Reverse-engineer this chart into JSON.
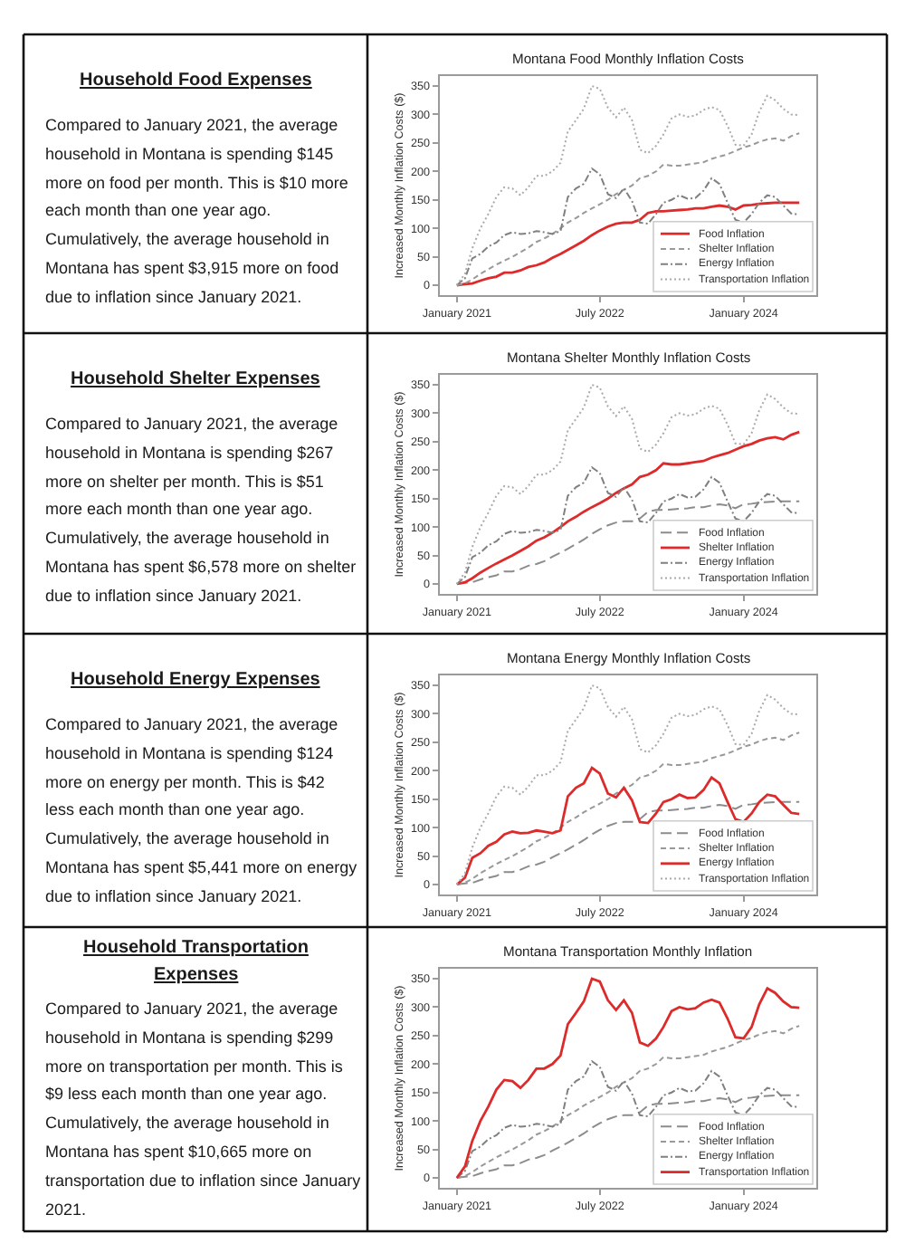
{
  "chart_data": [
    {
      "type": "other",
      "title": "Household Food Expenses",
      "annotations": [
        "Compared to January 2021, the average\nhousehold in Montana is spending $145\nmore on food per month. This is $10 more\neach month than one year ago.\nCumulatively, the average household in\nMontana has spent $3,915 more on food\ndue to inflation since January 2021."
      ]
    },
    {
      "type": "line",
      "title": "Montana Food Monthly Inflation Costs",
      "ylabel": "Increased Monthly Inflation Costs ($)",
      "legend": "bottom right",
      "x": [
        "2021-01",
        "2021-02",
        "2021-03",
        "2021-04",
        "2021-05",
        "2021-06",
        "2021-07",
        "2021-08",
        "2021-09",
        "2021-10",
        "2021-11",
        "2021-12",
        "2022-01",
        "2022-02",
        "2022-03",
        "2022-04",
        "2022-05",
        "2022-06",
        "2022-07",
        "2022-08",
        "2022-09",
        "2022-10",
        "2022-11",
        "2022-12",
        "2023-01",
        "2023-02",
        "2023-03",
        "2023-04",
        "2023-05",
        "2023-06",
        "2023-07",
        "2023-08",
        "2023-09",
        "2023-10",
        "2023-11",
        "2023-12",
        "2024-01",
        "2024-02",
        "2024-03",
        "2024-04",
        "2024-05",
        "2024-06",
        "2024-07",
        "2024-08"
      ],
      "xlim": [
        "2020-10-28",
        "2024-10-05"
      ],
      "xticks": [
        {
          "value": "2021-01",
          "label": "January 2021"
        },
        {
          "value": "2022-07",
          "label": "July 2022"
        },
        {
          "value": "2024-01",
          "label": "January 2024"
        }
      ],
      "ylim": [
        -17.5,
        367.5
      ],
      "yticks": [
        0,
        50,
        100,
        150,
        200,
        250,
        300,
        350
      ],
      "series": [
        {
          "name": "Food Inflation",
          "color": "#dd2a2a",
          "line_style": "solid",
          "values": [
            0,
            2,
            3,
            8,
            12,
            15,
            22,
            22,
            26,
            32,
            35,
            40,
            48,
            55,
            62,
            70,
            78,
            88,
            96,
            103,
            108,
            110,
            110,
            115,
            127,
            130,
            130,
            131,
            132,
            133,
            135,
            135,
            138,
            140,
            138,
            133,
            140,
            141,
            143,
            144,
            145,
            145,
            145,
            145
          ]
        },
        {
          "name": "Shelter Inflation",
          "color": "#999999",
          "line_style": "dashed",
          "values": [
            0,
            3,
            10,
            20,
            28,
            36,
            43,
            50,
            58,
            66,
            76,
            82,
            90,
            100,
            110,
            118,
            127,
            135,
            142,
            150,
            160,
            168,
            175,
            188,
            192,
            200,
            212,
            210,
            210,
            212,
            214,
            216,
            222,
            226,
            230,
            236,
            242,
            246,
            252,
            256,
            258,
            254,
            262,
            267
          ]
        },
        {
          "name": "Energy Inflation",
          "color": "#808080",
          "line_style": "dashdot",
          "values": [
            0,
            12,
            47,
            55,
            68,
            75,
            88,
            93,
            90,
            91,
            95,
            93,
            90,
            95,
            155,
            170,
            178,
            205,
            195,
            160,
            153,
            170,
            148,
            110,
            108,
            125,
            145,
            150,
            158,
            152,
            153,
            166,
            188,
            178,
            145,
            115,
            110,
            125,
            145,
            158,
            155,
            140,
            126,
            124
          ]
        },
        {
          "name": "Transportation Inflation",
          "color": "#aaaaaa",
          "line_style": "dotted",
          "values": [
            0,
            20,
            65,
            100,
            125,
            155,
            172,
            170,
            158,
            172,
            192,
            192,
            200,
            215,
            270,
            290,
            310,
            350,
            345,
            312,
            295,
            312,
            290,
            238,
            232,
            245,
            265,
            293,
            300,
            296,
            298,
            308,
            313,
            308,
            280,
            247,
            245,
            265,
            305,
            333,
            325,
            310,
            300,
            299
          ]
        }
      ]
    },
    {
      "type": "other",
      "title": "Household Shelter Expenses",
      "annotations": [
        "Compared to January 2021, the average\nhousehold in Montana is spending $267\nmore on shelter per month. This is $51\nmore each month than one year ago.\nCumulatively, the average household in\nMontana has spent $6,578 more on shelter\ndue to inflation since January 2021."
      ]
    },
    {
      "type": "line",
      "title": "Montana Shelter Monthly Inflation Costs",
      "ylabel": "Increased Monthly Inflation Costs ($)",
      "legend": "bottom right",
      "x": [
        "2021-01",
        "2021-02",
        "2021-03",
        "2021-04",
        "2021-05",
        "2021-06",
        "2021-07",
        "2021-08",
        "2021-09",
        "2021-10",
        "2021-11",
        "2021-12",
        "2022-01",
        "2022-02",
        "2022-03",
        "2022-04",
        "2022-05",
        "2022-06",
        "2022-07",
        "2022-08",
        "2022-09",
        "2022-10",
        "2022-11",
        "2022-12",
        "2023-01",
        "2023-02",
        "2023-03",
        "2023-04",
        "2023-05",
        "2023-06",
        "2023-07",
        "2023-08",
        "2023-09",
        "2023-10",
        "2023-11",
        "2023-12",
        "2024-01",
        "2024-02",
        "2024-03",
        "2024-04",
        "2024-05",
        "2024-06",
        "2024-07",
        "2024-08"
      ],
      "xlim": [
        "2020-10-28",
        "2024-10-05"
      ],
      "xticks": [
        {
          "value": "2021-01",
          "label": "January 2021"
        },
        {
          "value": "2022-07",
          "label": "July 2022"
        },
        {
          "value": "2024-01",
          "label": "January 2024"
        }
      ],
      "ylim": [
        -17.5,
        367.5
      ],
      "yticks": [
        0,
        50,
        100,
        150,
        200,
        250,
        300,
        350
      ],
      "series": [
        {
          "name": "Food Inflation",
          "color": "#8c8c8c",
          "line_style": "longdash",
          "values": [
            0,
            2,
            3,
            8,
            12,
            15,
            22,
            22,
            26,
            32,
            35,
            40,
            48,
            55,
            62,
            70,
            78,
            88,
            96,
            103,
            108,
            110,
            110,
            115,
            127,
            130,
            130,
            131,
            132,
            133,
            135,
            135,
            138,
            140,
            138,
            133,
            140,
            141,
            143,
            144,
            145,
            145,
            145,
            145
          ]
        },
        {
          "name": "Shelter Inflation",
          "color": "#dd2a2a",
          "line_style": "solid",
          "values": [
            0,
            3,
            10,
            20,
            28,
            36,
            43,
            50,
            58,
            66,
            76,
            82,
            90,
            100,
            110,
            118,
            127,
            135,
            142,
            150,
            160,
            168,
            175,
            188,
            192,
            200,
            212,
            210,
            210,
            212,
            214,
            216,
            222,
            226,
            230,
            236,
            242,
            246,
            252,
            256,
            258,
            254,
            262,
            267
          ]
        },
        {
          "name": "Energy Inflation",
          "color": "#808080",
          "line_style": "dashdot",
          "values": [
            0,
            12,
            47,
            55,
            68,
            75,
            88,
            93,
            90,
            91,
            95,
            93,
            90,
            95,
            155,
            170,
            178,
            205,
            195,
            160,
            153,
            170,
            148,
            110,
            108,
            125,
            145,
            150,
            158,
            152,
            153,
            166,
            188,
            178,
            145,
            115,
            110,
            125,
            145,
            158,
            155,
            140,
            126,
            124
          ]
        },
        {
          "name": "Transportation Inflation",
          "color": "#aaaaaa",
          "line_style": "dotted",
          "values": [
            0,
            20,
            65,
            100,
            125,
            155,
            172,
            170,
            158,
            172,
            192,
            192,
            200,
            215,
            270,
            290,
            310,
            350,
            345,
            312,
            295,
            312,
            290,
            238,
            232,
            245,
            265,
            293,
            300,
            296,
            298,
            308,
            313,
            308,
            280,
            247,
            245,
            265,
            305,
            333,
            325,
            310,
            300,
            299
          ]
        }
      ]
    },
    {
      "type": "other",
      "title": "Household Energy Expenses",
      "annotations": [
        "Compared to January 2021, the average\nhousehold in Montana is spending $124\nmore on energy per month. This is $42\nless each month than one year ago.\nCumulatively, the average household in\nMontana has spent $5,441 more on energy\ndue to inflation since January 2021."
      ]
    },
    {
      "type": "line",
      "title": "Montana Energy Monthly Inflation Costs",
      "ylabel": "Increased Monthly Inflation Costs ($)",
      "legend": "bottom right",
      "x": [
        "2021-01",
        "2021-02",
        "2021-03",
        "2021-04",
        "2021-05",
        "2021-06",
        "2021-07",
        "2021-08",
        "2021-09",
        "2021-10",
        "2021-11",
        "2021-12",
        "2022-01",
        "2022-02",
        "2022-03",
        "2022-04",
        "2022-05",
        "2022-06",
        "2022-07",
        "2022-08",
        "2022-09",
        "2022-10",
        "2022-11",
        "2022-12",
        "2023-01",
        "2023-02",
        "2023-03",
        "2023-04",
        "2023-05",
        "2023-06",
        "2023-07",
        "2023-08",
        "2023-09",
        "2023-10",
        "2023-11",
        "2023-12",
        "2024-01",
        "2024-02",
        "2024-03",
        "2024-04",
        "2024-05",
        "2024-06",
        "2024-07",
        "2024-08"
      ],
      "xlim": [
        "2020-10-28",
        "2024-10-05"
      ],
      "xticks": [
        {
          "value": "2021-01",
          "label": "January 2021"
        },
        {
          "value": "2022-07",
          "label": "July 2022"
        },
        {
          "value": "2024-01",
          "label": "January 2024"
        }
      ],
      "ylim": [
        -17.5,
        367.5
      ],
      "yticks": [
        0,
        50,
        100,
        150,
        200,
        250,
        300,
        350
      ],
      "series": [
        {
          "name": "Food Inflation",
          "color": "#8c8c8c",
          "line_style": "longdash",
          "values": [
            0,
            2,
            3,
            8,
            12,
            15,
            22,
            22,
            26,
            32,
            35,
            40,
            48,
            55,
            62,
            70,
            78,
            88,
            96,
            103,
            108,
            110,
            110,
            115,
            127,
            130,
            130,
            131,
            132,
            133,
            135,
            135,
            138,
            140,
            138,
            133,
            140,
            141,
            143,
            144,
            145,
            145,
            145,
            145
          ]
        },
        {
          "name": "Shelter Inflation",
          "color": "#999999",
          "line_style": "dashed",
          "values": [
            0,
            3,
            10,
            20,
            28,
            36,
            43,
            50,
            58,
            66,
            76,
            82,
            90,
            100,
            110,
            118,
            127,
            135,
            142,
            150,
            160,
            168,
            175,
            188,
            192,
            200,
            212,
            210,
            210,
            212,
            214,
            216,
            222,
            226,
            230,
            236,
            242,
            246,
            252,
            256,
            258,
            254,
            262,
            267
          ]
        },
        {
          "name": "Energy Inflation",
          "color": "#dd2a2a",
          "line_style": "solid",
          "values": [
            0,
            12,
            47,
            55,
            68,
            75,
            88,
            93,
            90,
            91,
            95,
            93,
            90,
            95,
            155,
            170,
            178,
            205,
            195,
            160,
            153,
            170,
            148,
            110,
            108,
            125,
            145,
            150,
            158,
            152,
            153,
            166,
            188,
            178,
            145,
            115,
            110,
            125,
            145,
            158,
            155,
            140,
            126,
            124
          ]
        },
        {
          "name": "Transportation Inflation",
          "color": "#aaaaaa",
          "line_style": "dotted",
          "values": [
            0,
            20,
            65,
            100,
            125,
            155,
            172,
            170,
            158,
            172,
            192,
            192,
            200,
            215,
            270,
            290,
            310,
            350,
            345,
            312,
            295,
            312,
            290,
            238,
            232,
            245,
            265,
            293,
            300,
            296,
            298,
            308,
            313,
            308,
            280,
            247,
            245,
            265,
            305,
            333,
            325,
            310,
            300,
            299
          ]
        }
      ]
    },
    {
      "type": "other",
      "title": "Household Transportation\nExpenses",
      "annotations": [
        "Compared to January 2021, the average\nhousehold in Montana is spending $299\nmore on transportation per month. This is\n$9 less each month than one year ago.\nCumulatively, the average household in\nMontana has spent $10,665 more on\ntransportation due to inflation since January\n2021."
      ]
    },
    {
      "type": "line",
      "title": "Montana Transportation Monthly Inflation",
      "ylabel": "Increased Monthly Inflation Costs ($)",
      "legend": "bottom right",
      "x": [
        "2021-01",
        "2021-02",
        "2021-03",
        "2021-04",
        "2021-05",
        "2021-06",
        "2021-07",
        "2021-08",
        "2021-09",
        "2021-10",
        "2021-11",
        "2021-12",
        "2022-01",
        "2022-02",
        "2022-03",
        "2022-04",
        "2022-05",
        "2022-06",
        "2022-07",
        "2022-08",
        "2022-09",
        "2022-10",
        "2022-11",
        "2022-12",
        "2023-01",
        "2023-02",
        "2023-03",
        "2023-04",
        "2023-05",
        "2023-06",
        "2023-07",
        "2023-08",
        "2023-09",
        "2023-10",
        "2023-11",
        "2023-12",
        "2024-01",
        "2024-02",
        "2024-03",
        "2024-04",
        "2024-05",
        "2024-06",
        "2024-07",
        "2024-08"
      ],
      "xlim": [
        "2020-10-28",
        "2024-10-05"
      ],
      "xticks": [
        {
          "value": "2021-01",
          "label": "January 2021"
        },
        {
          "value": "2022-07",
          "label": "July 2022"
        },
        {
          "value": "2024-01",
          "label": "January 2024"
        }
      ],
      "ylim": [
        -17.5,
        367.5
      ],
      "yticks": [
        0,
        50,
        100,
        150,
        200,
        250,
        300,
        350
      ],
      "series": [
        {
          "name": "Food Inflation",
          "color": "#8c8c8c",
          "line_style": "longdash",
          "values": [
            0,
            2,
            3,
            8,
            12,
            15,
            22,
            22,
            26,
            32,
            35,
            40,
            48,
            55,
            62,
            70,
            78,
            88,
            96,
            103,
            108,
            110,
            110,
            115,
            127,
            130,
            130,
            131,
            132,
            133,
            135,
            135,
            138,
            140,
            138,
            133,
            140,
            141,
            143,
            144,
            145,
            145,
            145,
            145
          ]
        },
        {
          "name": "Shelter Inflation",
          "color": "#999999",
          "line_style": "dashed",
          "values": [
            0,
            3,
            10,
            20,
            28,
            36,
            43,
            50,
            58,
            66,
            76,
            82,
            90,
            100,
            110,
            118,
            127,
            135,
            142,
            150,
            160,
            168,
            175,
            188,
            192,
            200,
            212,
            210,
            210,
            212,
            214,
            216,
            222,
            226,
            230,
            236,
            242,
            246,
            252,
            256,
            258,
            254,
            262,
            267
          ]
        },
        {
          "name": "Energy Inflation",
          "color": "#808080",
          "line_style": "dashdot",
          "values": [
            0,
            12,
            47,
            55,
            68,
            75,
            88,
            93,
            90,
            91,
            95,
            93,
            90,
            95,
            155,
            170,
            178,
            205,
            195,
            160,
            153,
            170,
            148,
            110,
            108,
            125,
            145,
            150,
            158,
            152,
            153,
            166,
            188,
            178,
            145,
            115,
            110,
            125,
            145,
            158,
            155,
            140,
            126,
            124
          ]
        },
        {
          "name": "Transportation Inflation",
          "color": "#dd2a2a",
          "line_style": "solid",
          "values": [
            0,
            20,
            65,
            100,
            125,
            155,
            172,
            170,
            158,
            172,
            192,
            192,
            200,
            215,
            270,
            290,
            310,
            350,
            345,
            312,
            295,
            312,
            290,
            238,
            232,
            245,
            265,
            293,
            300,
            296,
            298,
            308,
            313,
            308,
            280,
            247,
            245,
            265,
            305,
            333,
            325,
            310,
            300,
            299
          ]
        }
      ]
    }
  ]
}
